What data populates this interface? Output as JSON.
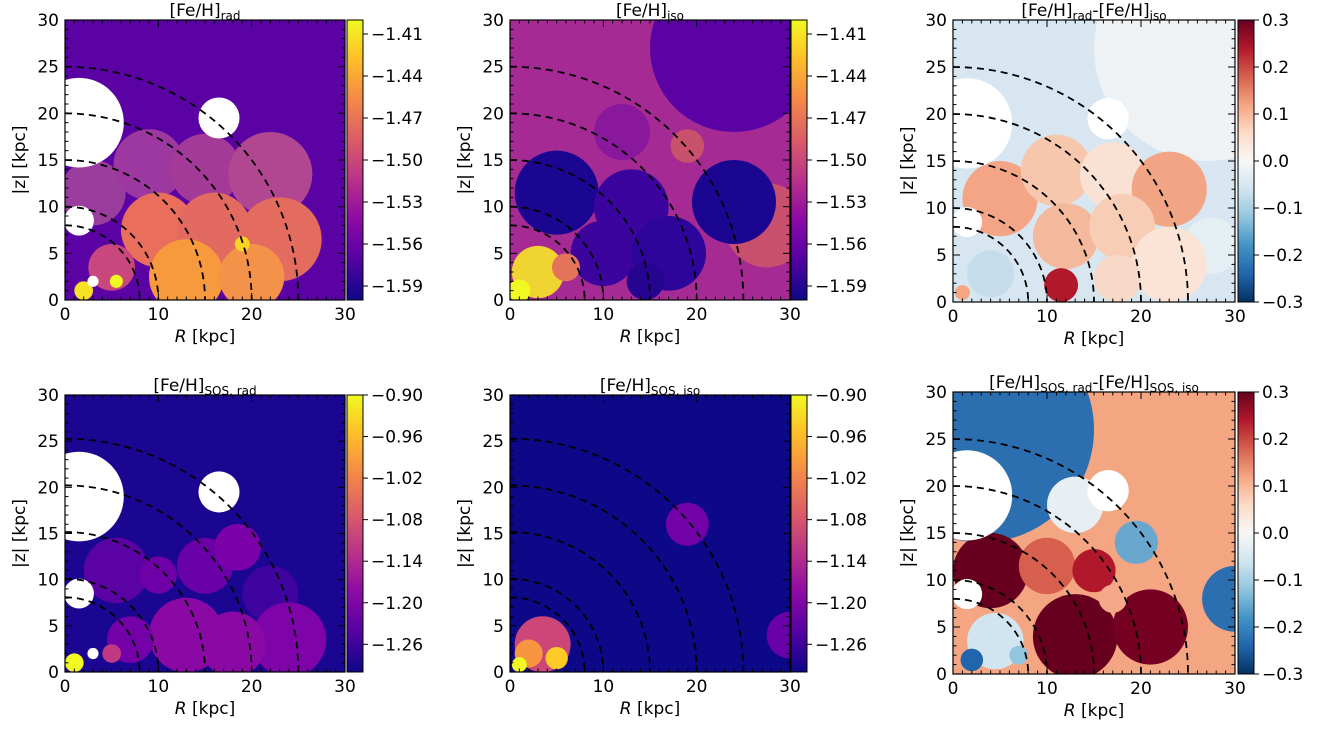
{
  "chart_data": [
    {
      "type": "heatmap",
      "title": "[Fe/H]",
      "title_sub": "rad",
      "xlabel_italic": "R",
      "xlabel_rest": " [kpc]",
      "ylabel": "|z| [kpc]",
      "xlim": [
        0,
        30
      ],
      "ylim": [
        0,
        30
      ],
      "xticks": [
        "0",
        "10",
        "20",
        "30"
      ],
      "yticks": [
        "0",
        "5",
        "10",
        "15",
        "20",
        "25",
        "30"
      ],
      "dashed_circle_radii": [
        8,
        10,
        15,
        20,
        25
      ],
      "background_color": "#5a02a4",
      "holes": [
        {
          "x": 1.5,
          "y": 19.0,
          "r": 4.8
        },
        {
          "x": 16.5,
          "y": 19.5,
          "r": 2.2
        },
        {
          "x": 1.5,
          "y": 8.5,
          "r": 1.6
        },
        {
          "x": 3.0,
          "y": 2.0,
          "r": 0.6
        }
      ],
      "regions": [
        {
          "x": 3.0,
          "y": 11.5,
          "r": 3.5,
          "color": "#9a3d9c"
        },
        {
          "x": 9.0,
          "y": 14.5,
          "r": 3.8,
          "color": "#9c38a0"
        },
        {
          "x": 15.0,
          "y": 14.0,
          "r": 3.8,
          "color": "#a43a98"
        },
        {
          "x": 22.0,
          "y": 13.5,
          "r": 4.5,
          "color": "#b14790"
        },
        {
          "x": 10.0,
          "y": 7.5,
          "r": 4.0,
          "color": "#e96f5c"
        },
        {
          "x": 16.0,
          "y": 7.5,
          "r": 4.0,
          "color": "#e36a61"
        },
        {
          "x": 23.0,
          "y": 6.5,
          "r": 4.5,
          "color": "#e46c5e"
        },
        {
          "x": 13.0,
          "y": 2.5,
          "r": 4.0,
          "color": "#f79a3e"
        },
        {
          "x": 20.0,
          "y": 2.5,
          "r": 3.5,
          "color": "#f5924a"
        },
        {
          "x": 5.0,
          "y": 3.5,
          "r": 2.5,
          "color": "#c8487e"
        },
        {
          "x": 2.0,
          "y": 1.0,
          "r": 1.0,
          "color": "#f7e225"
        },
        {
          "x": 5.5,
          "y": 2.0,
          "r": 0.7,
          "color": "#f0f921"
        },
        {
          "x": 19.0,
          "y": 6.0,
          "r": 0.8,
          "color": "#fbd524"
        }
      ],
      "colorbar": {
        "cmap": "plasma",
        "range": [
          -1.6,
          -1.4
        ],
        "ticks": [
          -1.41,
          -1.44,
          -1.47,
          -1.5,
          -1.53,
          -1.56,
          -1.59
        ],
        "tick_labels": [
          "−1.41",
          "−1.44",
          "−1.47",
          "−1.50",
          "−1.53",
          "−1.56",
          "−1.59"
        ]
      }
    },
    {
      "type": "heatmap",
      "title": "[Fe/H]",
      "title_sub": "iso",
      "xlabel_italic": "R",
      "xlabel_rest": " [kpc]",
      "ylabel": "|z| [kpc]",
      "xlim": [
        0,
        30
      ],
      "ylim": [
        0,
        30
      ],
      "xticks": [
        "0",
        "10",
        "20",
        "30"
      ],
      "yticks": [
        "0",
        "5",
        "10",
        "15",
        "20",
        "25",
        "30"
      ],
      "dashed_circle_radii": [
        8,
        10,
        15,
        20,
        25
      ],
      "background_color": "#a62a94",
      "holes": [],
      "regions": [
        {
          "x": 24.0,
          "y": 27.0,
          "r": 9.0,
          "color": "#5a02a4"
        },
        {
          "x": 27.5,
          "y": 8.0,
          "r": 4.5,
          "color": "#c94f6f"
        },
        {
          "x": 24.0,
          "y": 10.5,
          "r": 4.5,
          "color": "#1a0690"
        },
        {
          "x": 5.0,
          "y": 11.5,
          "r": 4.5,
          "color": "#1a0690"
        },
        {
          "x": 13.0,
          "y": 10.0,
          "r": 4.0,
          "color": "#3c049f"
        },
        {
          "x": 10.0,
          "y": 5.0,
          "r": 3.5,
          "color": "#3a049d"
        },
        {
          "x": 17.0,
          "y": 5.0,
          "r": 4.0,
          "color": "#2e059a"
        },
        {
          "x": 19.0,
          "y": 16.5,
          "r": 1.8,
          "color": "#c8516b"
        },
        {
          "x": 12.0,
          "y": 18.0,
          "r": 3.0,
          "color": "#8a189c"
        },
        {
          "x": 3.0,
          "y": 3.0,
          "r": 2.8,
          "color": "#f0d532"
        },
        {
          "x": 1.0,
          "y": 1.0,
          "r": 1.2,
          "color": "#f0f921"
        },
        {
          "x": 6.0,
          "y": 3.5,
          "r": 1.5,
          "color": "#e3735a"
        },
        {
          "x": 14.5,
          "y": 2.0,
          "r": 2.0,
          "color": "#25058f"
        }
      ],
      "colorbar": {
        "cmap": "plasma",
        "range": [
          -1.6,
          -1.4
        ],
        "ticks": [
          -1.41,
          -1.44,
          -1.47,
          -1.5,
          -1.53,
          -1.56,
          -1.59
        ],
        "tick_labels": [
          "−1.41",
          "−1.44",
          "−1.47",
          "−1.50",
          "−1.53",
          "−1.56",
          "−1.59"
        ]
      }
    },
    {
      "type": "heatmap",
      "title": "[Fe/H]",
      "title_sub": "rad",
      "title_mid": "-[Fe/H]",
      "title_sub2": "iso",
      "xlabel_italic": "R",
      "xlabel_rest": " [kpc]",
      "ylabel": "|z| [kpc]",
      "xlim": [
        0,
        30
      ],
      "ylim": [
        0,
        30
      ],
      "xticks": [
        "0",
        "10",
        "20",
        "30"
      ],
      "yticks": [
        "0",
        "5",
        "10",
        "15",
        "20",
        "25",
        "30"
      ],
      "dashed_circle_radii": [
        8,
        10,
        15,
        20,
        25
      ],
      "background_color": "#d7e6f0",
      "holes": [
        {
          "x": 1.5,
          "y": 19.0,
          "r": 4.8
        },
        {
          "x": 16.5,
          "y": 19.5,
          "r": 2.2
        },
        {
          "x": 1.5,
          "y": 8.5,
          "r": 1.6
        }
      ],
      "regions": [
        {
          "x": 27.0,
          "y": 27.0,
          "r": 12.0,
          "color": "#eef2f5"
        },
        {
          "x": 27.5,
          "y": 6.0,
          "r": 3.0,
          "color": "#e5eef3"
        },
        {
          "x": 5.0,
          "y": 11.0,
          "r": 4.0,
          "color": "#f3a585"
        },
        {
          "x": 11.0,
          "y": 14.0,
          "r": 3.8,
          "color": "#f6c6ad"
        },
        {
          "x": 17.0,
          "y": 13.5,
          "r": 3.5,
          "color": "#f9e2d4"
        },
        {
          "x": 23.0,
          "y": 12.0,
          "r": 4.0,
          "color": "#f1a584"
        },
        {
          "x": 12.0,
          "y": 7.0,
          "r": 3.5,
          "color": "#f4b89c"
        },
        {
          "x": 18.0,
          "y": 8.0,
          "r": 3.5,
          "color": "#f7cdb6"
        },
        {
          "x": 23.0,
          "y": 4.0,
          "r": 4.0,
          "color": "#fbe4d6"
        },
        {
          "x": 11.5,
          "y": 1.8,
          "r": 1.8,
          "color": "#b2182b"
        },
        {
          "x": 4.0,
          "y": 3.0,
          "r": 2.5,
          "color": "#c5dcea"
        },
        {
          "x": 1.0,
          "y": 1.0,
          "r": 0.8,
          "color": "#f4a582"
        },
        {
          "x": 17.5,
          "y": 2.5,
          "r": 2.5,
          "color": "#f8d8c6"
        }
      ],
      "colorbar": {
        "cmap": "RdBu_r",
        "range": [
          -0.3,
          0.3
        ],
        "ticks": [
          0.3,
          0.2,
          0.1,
          0.0,
          -0.1,
          -0.2,
          -0.3
        ],
        "tick_labels": [
          "0.3",
          "0.2",
          "0.1",
          "0.0",
          "−0.1",
          "−0.2",
          "−0.3"
        ]
      }
    },
    {
      "type": "heatmap",
      "title": "[Fe/H]",
      "title_sub": "SOS, rad",
      "xlabel_italic": "R",
      "xlabel_rest": " [kpc]",
      "ylabel": "|z| [kpc]",
      "xlim": [
        0,
        30
      ],
      "ylim": [
        0,
        30
      ],
      "xticks": [
        "0",
        "10",
        "20",
        "30"
      ],
      "yticks": [
        "0",
        "5",
        "10",
        "15",
        "20",
        "25",
        "30"
      ],
      "dashed_circle_radii": [
        8,
        10,
        15,
        20,
        25
      ],
      "background_color": "#1a0690",
      "holes": [
        {
          "x": 1.5,
          "y": 19.0,
          "r": 4.8
        },
        {
          "x": 16.5,
          "y": 19.5,
          "r": 2.2
        },
        {
          "x": 1.5,
          "y": 8.5,
          "r": 1.6
        },
        {
          "x": 3.0,
          "y": 2.0,
          "r": 0.6
        }
      ],
      "regions": [
        {
          "x": 5.5,
          "y": 11.0,
          "r": 3.5,
          "color": "#5a02a4"
        },
        {
          "x": 10.0,
          "y": 10.5,
          "r": 2.0,
          "color": "#6f00a8"
        },
        {
          "x": 15.0,
          "y": 11.5,
          "r": 3.0,
          "color": "#6a00a8"
        },
        {
          "x": 22.0,
          "y": 8.5,
          "r": 3.0,
          "color": "#3f049f"
        },
        {
          "x": 24.0,
          "y": 3.5,
          "r": 4.0,
          "color": "#7e03a8"
        },
        {
          "x": 13.0,
          "y": 4.0,
          "r": 4.0,
          "color": "#8a09a5"
        },
        {
          "x": 18.0,
          "y": 3.0,
          "r": 3.5,
          "color": "#8a09a5"
        },
        {
          "x": 7.0,
          "y": 3.5,
          "r": 2.5,
          "color": "#7401a8"
        },
        {
          "x": 5.0,
          "y": 2.0,
          "r": 1.0,
          "color": "#c03a83"
        },
        {
          "x": 1.0,
          "y": 1.0,
          "r": 1.0,
          "color": "#f0f921"
        },
        {
          "x": 18.5,
          "y": 13.5,
          "r": 2.5,
          "color": "#7a02a8"
        }
      ],
      "colorbar": {
        "cmap": "plasma",
        "range": [
          -1.3,
          -0.9
        ],
        "ticks": [
          -0.9,
          -0.96,
          -1.02,
          -1.08,
          -1.14,
          -1.2,
          -1.26
        ],
        "tick_labels": [
          "−0.90",
          "−0.96",
          "−1.02",
          "−1.08",
          "−1.14",
          "−1.20",
          "−1.26"
        ]
      }
    },
    {
      "type": "heatmap",
      "title": "[Fe/H]",
      "title_sub": "SOS, iso",
      "xlabel_italic": "R",
      "xlabel_rest": " [kpc]",
      "ylabel": "|z| [kpc]",
      "xlim": [
        0,
        30
      ],
      "ylim": [
        0,
        30
      ],
      "xticks": [
        "0",
        "10",
        "20",
        "30"
      ],
      "yticks": [
        "0",
        "5",
        "10",
        "15",
        "20",
        "25",
        "30"
      ],
      "dashed_circle_radii": [
        8,
        10,
        15,
        20,
        25
      ],
      "background_color": "#0d0887",
      "holes": [],
      "regions": [
        {
          "x": 19.0,
          "y": 16.0,
          "r": 2.3,
          "color": "#7201a8"
        },
        {
          "x": 30.0,
          "y": 4.0,
          "r": 2.5,
          "color": "#6a00a8"
        },
        {
          "x": 3.5,
          "y": 3.0,
          "r": 3.0,
          "color": "#cc4778"
        },
        {
          "x": 2.0,
          "y": 2.0,
          "r": 1.5,
          "color": "#f89540"
        },
        {
          "x": 5.0,
          "y": 1.5,
          "r": 1.2,
          "color": "#fdca26"
        },
        {
          "x": 1.0,
          "y": 0.8,
          "r": 0.8,
          "color": "#f0f921"
        }
      ],
      "colorbar": {
        "cmap": "plasma",
        "range": [
          -1.3,
          -0.9
        ],
        "ticks": [
          -0.9,
          -0.96,
          -1.02,
          -1.08,
          -1.14,
          -1.2,
          -1.26
        ],
        "tick_labels": [
          "−0.90",
          "−0.96",
          "−1.02",
          "−1.08",
          "−1.14",
          "−1.20",
          "−1.26"
        ]
      }
    },
    {
      "type": "heatmap",
      "title": "[Fe/H]",
      "title_sub": "SOS, rad",
      "title_mid": "-[Fe/H]",
      "title_sub2": "SOS, iso",
      "xlabel_italic": "R",
      "xlabel_rest": " [kpc]",
      "ylabel": "|z| [kpc]",
      "xlim": [
        0,
        30
      ],
      "ylim": [
        0,
        30
      ],
      "xticks": [
        "0",
        "10",
        "20",
        "30"
      ],
      "yticks": [
        "0",
        "5",
        "10",
        "15",
        "20",
        "25",
        "30"
      ],
      "dashed_circle_radii": [
        8,
        10,
        15,
        20,
        25
      ],
      "background_color": "#f4a582",
      "holes": [
        {
          "x": 1.5,
          "y": 19.0,
          "r": 4.8
        },
        {
          "x": 16.5,
          "y": 19.5,
          "r": 2.2
        },
        {
          "x": 1.5,
          "y": 8.5,
          "r": 1.6
        }
      ],
      "regions": [
        {
          "x": 3.0,
          "y": 26.0,
          "r": 12.0,
          "color": "#2c6fb0"
        },
        {
          "x": 30.0,
          "y": 8.0,
          "r": 3.5,
          "color": "#2c6fb0"
        },
        {
          "x": 4.0,
          "y": 11.0,
          "r": 4.0,
          "color": "#67001f"
        },
        {
          "x": 10.0,
          "y": 11.5,
          "r": 3.0,
          "color": "#d6604d"
        },
        {
          "x": 13.0,
          "y": 18.0,
          "r": 3.0,
          "color": "#e8eff4"
        },
        {
          "x": 19.5,
          "y": 14.0,
          "r": 2.3,
          "color": "#6aa7cf"
        },
        {
          "x": 13.0,
          "y": 4.0,
          "r": 4.5,
          "color": "#67001f"
        },
        {
          "x": 21.0,
          "y": 5.0,
          "r": 4.0,
          "color": "#750021"
        },
        {
          "x": 4.5,
          "y": 3.5,
          "r": 3.0,
          "color": "#d1e5f0"
        },
        {
          "x": 15.0,
          "y": 11.0,
          "r": 2.3,
          "color": "#b2182b"
        },
        {
          "x": 17.0,
          "y": 8.0,
          "r": 1.5,
          "color": "#f5a98a"
        },
        {
          "x": 2.0,
          "y": 1.5,
          "r": 1.2,
          "color": "#2166ac"
        },
        {
          "x": 7.0,
          "y": 2.0,
          "r": 1.0,
          "color": "#92c5de"
        }
      ],
      "colorbar": {
        "cmap": "RdBu_r",
        "range": [
          -0.3,
          0.3
        ],
        "ticks": [
          0.3,
          0.2,
          0.1,
          0.0,
          -0.1,
          -0.2,
          -0.3
        ],
        "tick_labels": [
          "0.3",
          "0.2",
          "0.1",
          "0.0",
          "−0.1",
          "−0.2",
          "−0.3"
        ]
      }
    }
  ]
}
